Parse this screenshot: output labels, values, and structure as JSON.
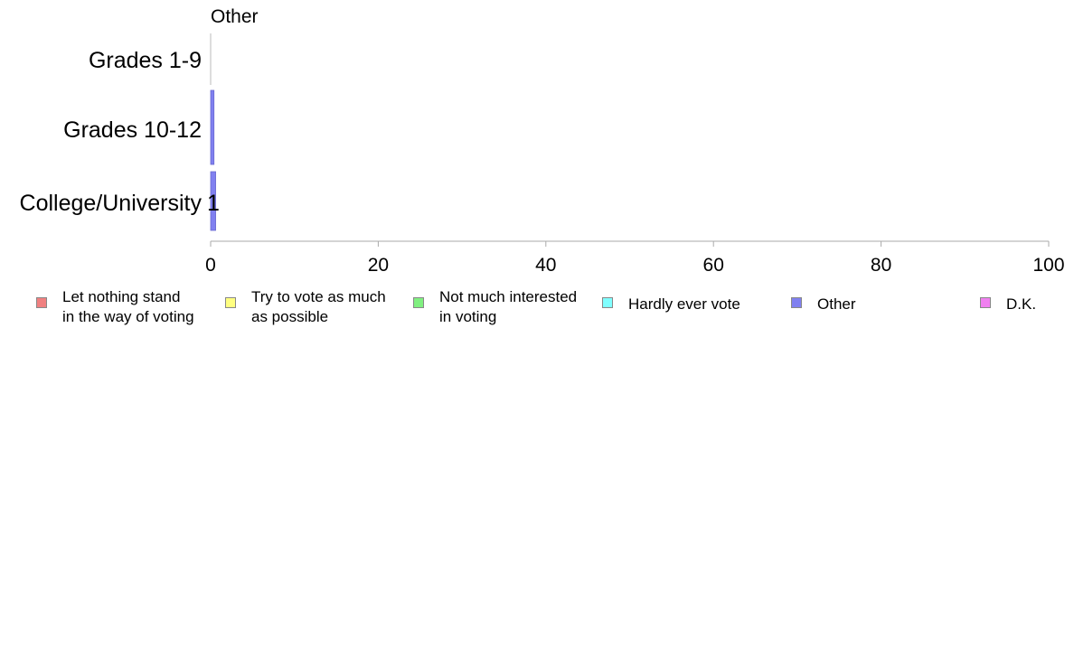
{
  "chart_data": {
    "type": "bar",
    "orientation": "horizontal",
    "panel_title": "Other",
    "categories": [
      "Grades 1-9",
      "Grades 10-12",
      "College/University"
    ],
    "values": [
      0,
      0.4,
      0.6
    ],
    "data_labels": [
      "",
      "",
      "1"
    ],
    "series_color": "#8080f0",
    "xlim": [
      0,
      100
    ],
    "xticks": [
      0,
      20,
      40,
      60,
      80,
      100
    ],
    "grid": false,
    "legend_position": "bottom",
    "legend": [
      {
        "label": "Let nothing stand\nin the way of voting",
        "color": "#f08080"
      },
      {
        "label": "Try to vote as much\nas possible",
        "color": "#ffff80"
      },
      {
        "label": "Not much interested\nin voting",
        "color": "#80f080"
      },
      {
        "label": "Hardly ever vote",
        "color": "#80ffff"
      },
      {
        "label": "Other",
        "color": "#8080f0"
      },
      {
        "label": "D.K.",
        "color": "#f080f0"
      }
    ]
  }
}
